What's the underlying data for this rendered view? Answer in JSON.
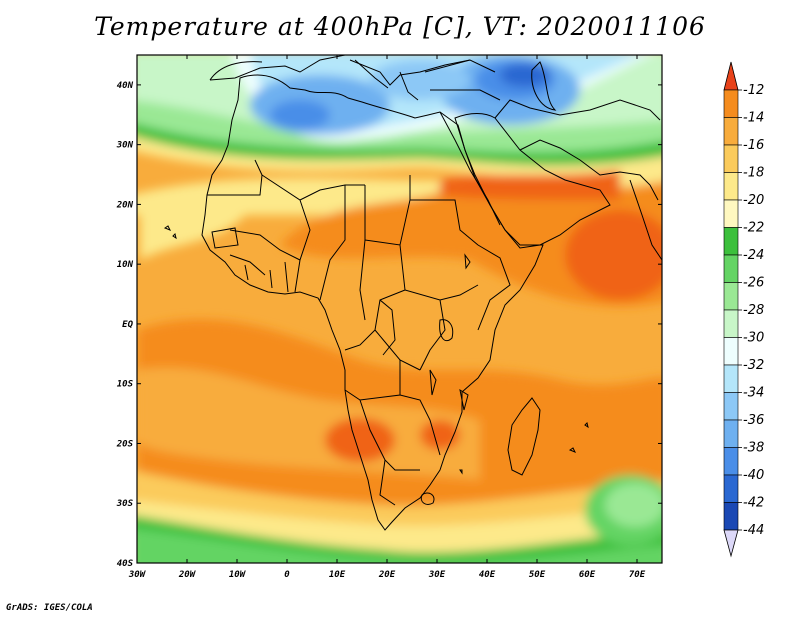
{
  "title": "Temperature at 400hPa [C], VT: 2020011106",
  "credit": "GrADS: IGES/COLA",
  "map": {
    "extent": {
      "lon_min": -30,
      "lon_max": 75,
      "lat_min": -40,
      "lat_max": 45
    },
    "lat_ticks": [
      {
        "lat": 40,
        "label": "40N"
      },
      {
        "lat": 30,
        "label": "30N"
      },
      {
        "lat": 20,
        "label": "20N"
      },
      {
        "lat": 10,
        "label": "10N"
      },
      {
        "lat": 0,
        "label": "EQ"
      },
      {
        "lat": -10,
        "label": "10S"
      },
      {
        "lat": -20,
        "label": "20S"
      },
      {
        "lat": -30,
        "label": "30S"
      },
      {
        "lat": -40,
        "label": "40S"
      }
    ],
    "lon_ticks": [
      {
        "lon": -30,
        "label": "30W"
      },
      {
        "lon": -20,
        "label": "20W"
      },
      {
        "lon": -10,
        "label": "10W"
      },
      {
        "lon": 0,
        "label": "0"
      },
      {
        "lon": 10,
        "label": "10E"
      },
      {
        "lon": 20,
        "label": "20E"
      },
      {
        "lon": 30,
        "label": "30E"
      },
      {
        "lon": 40,
        "label": "40E"
      },
      {
        "lon": 50,
        "label": "50E"
      },
      {
        "lon": 60,
        "label": "60E"
      },
      {
        "lon": 70,
        "label": "70E"
      }
    ]
  },
  "colorbar": {
    "levels": [
      "-12",
      "-14",
      "-16",
      "-18",
      "-20",
      "-22",
      "-24",
      "-26",
      "-28",
      "-30",
      "-32",
      "-34",
      "-36",
      "-38",
      "-40",
      "-42",
      "-44"
    ],
    "top_color": "#e8421a",
    "bottom_color": "#dcd8f8",
    "bins": [
      "#f06414",
      "#f58c1e",
      "#f8ac3c",
      "#fbcb5c",
      "#fde98a",
      "#fff8c0",
      "#3cc03c",
      "#64d464",
      "#9ae894",
      "#c8f6c8",
      "#eefefe",
      "#b4e6fa",
      "#8cc8f6",
      "#6eb0f0",
      "#4a8ee8",
      "#2a68d2",
      "#1a48b4",
      "#101478"
    ]
  }
}
